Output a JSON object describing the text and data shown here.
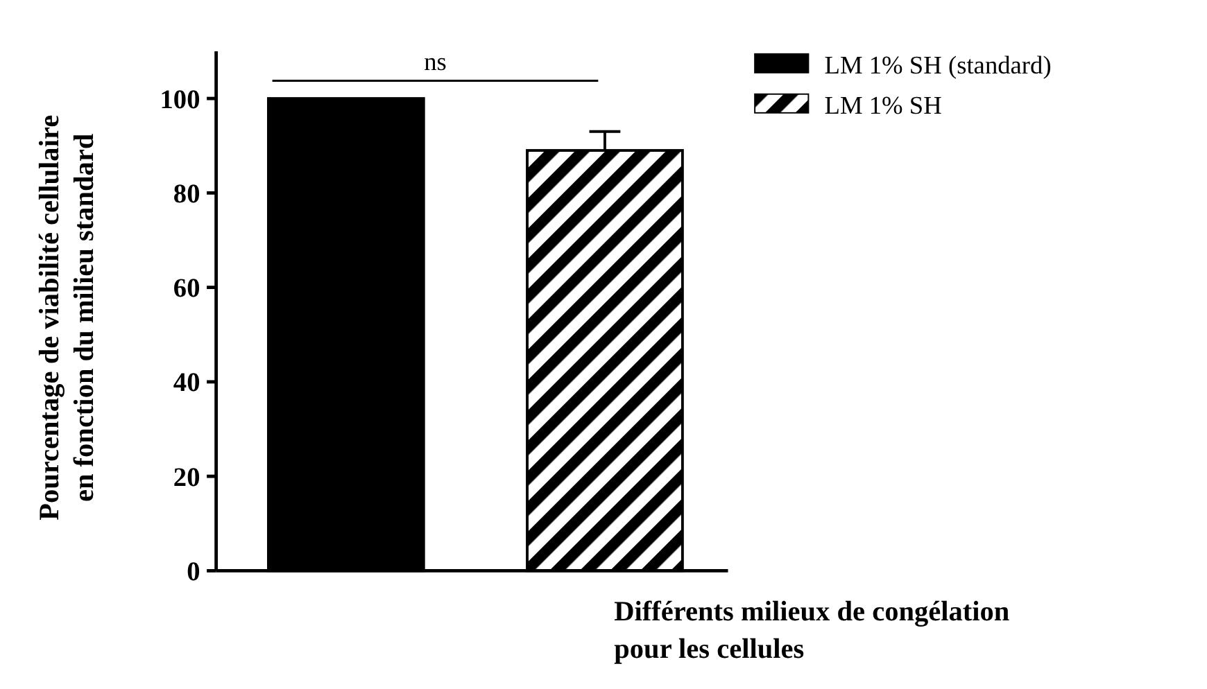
{
  "chart_data": {
    "type": "bar",
    "stacked": true,
    "categories": [
      null,
      null
    ],
    "series": [
      {
        "name": "LM 1% SH (standard)",
        "color": "#000000",
        "values": [
          100,
          null
        ]
      },
      {
        "name": "LM 1% SH",
        "color": "#000000",
        "values": [
          null,
          89
        ],
        "errors": [
          null,
          4
        ]
      }
    ],
    "xlabel": "Différents milieux de congélation\npour les cellules",
    "ylabel": "Pourcentage de viabilité cellulaire\nen fonction du milieu standard",
    "ylim": [
      0,
      110
    ],
    "yticks": [
      0,
      20,
      40,
      60,
      80,
      100
    ],
    "legend": "top right",
    "grid": false,
    "annotations": [
      "ns"
    ]
  }
}
